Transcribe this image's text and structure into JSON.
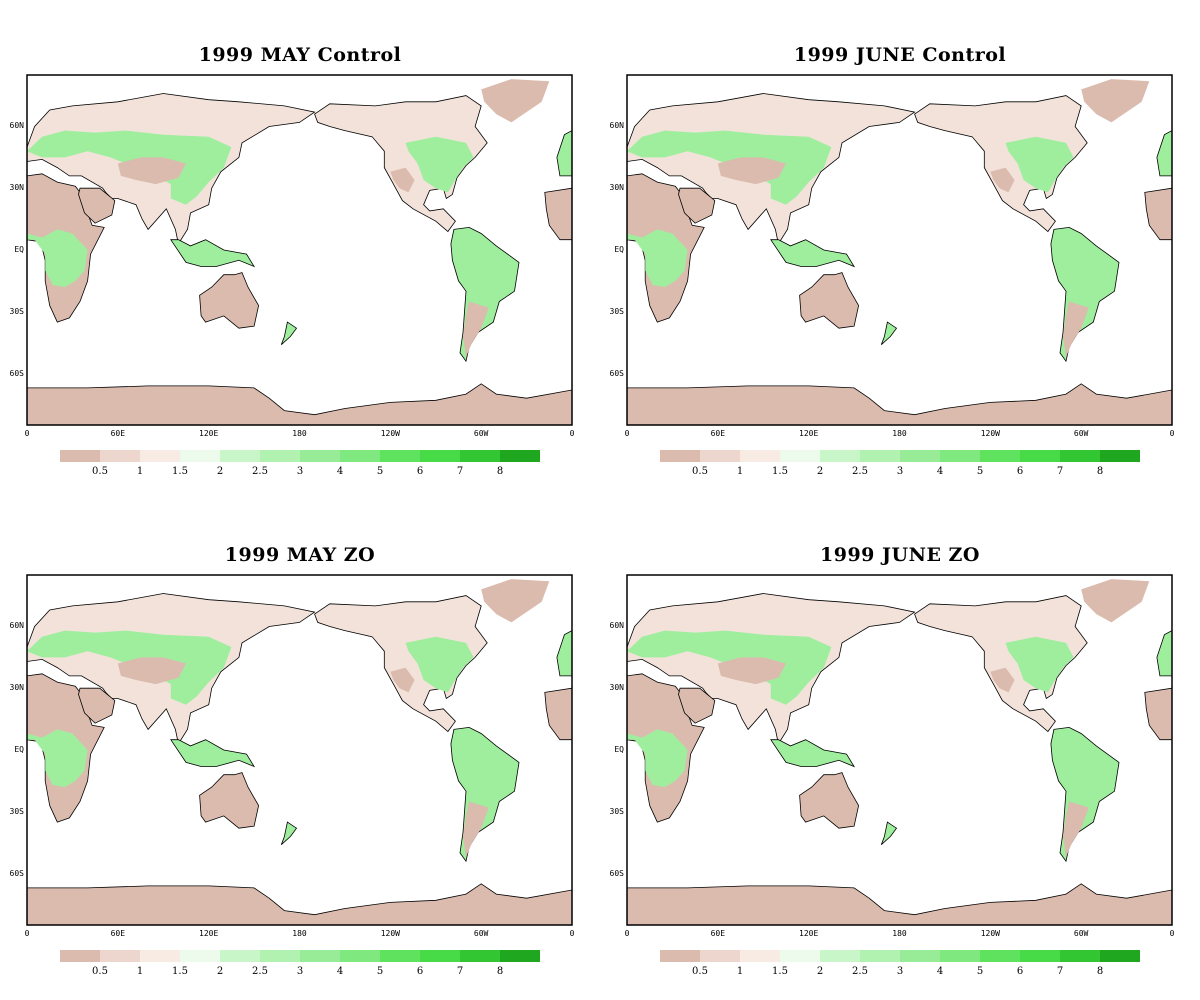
{
  "panels": [
    {
      "title": "1999 MAY Control"
    },
    {
      "title": "1999 JUNE Control"
    },
    {
      "title": "1999 MAY ZO"
    },
    {
      "title": "1999 JUNE ZO"
    }
  ],
  "lat_labels": [
    "60N",
    "30N",
    "EQ",
    "30S",
    "60S"
  ],
  "lon_labels": [
    "0",
    "60E",
    "120E",
    "180",
    "120W",
    "60W",
    "0"
  ],
  "colorbar": {
    "colors": [
      "#dbbbae",
      "#ecd6cd",
      "#f7ebe4",
      "#ecfbec",
      "#c9f6c9",
      "#b1f2b1",
      "#98ec98",
      "#7fe87f",
      "#5fe35f",
      "#47dc47",
      "#33c633",
      "#1fa81f"
    ],
    "ticks": [
      "0.5",
      "1",
      "1.5",
      "2",
      "2.5",
      "3",
      "4",
      "5",
      "6",
      "7",
      "8"
    ]
  },
  "colors": {
    "land_low": "#dbbbae",
    "land_mid": "#f2e2da",
    "land_green": "#9eee9e",
    "land_dark": "#5fe35f",
    "ocean": "#ffffff"
  }
}
